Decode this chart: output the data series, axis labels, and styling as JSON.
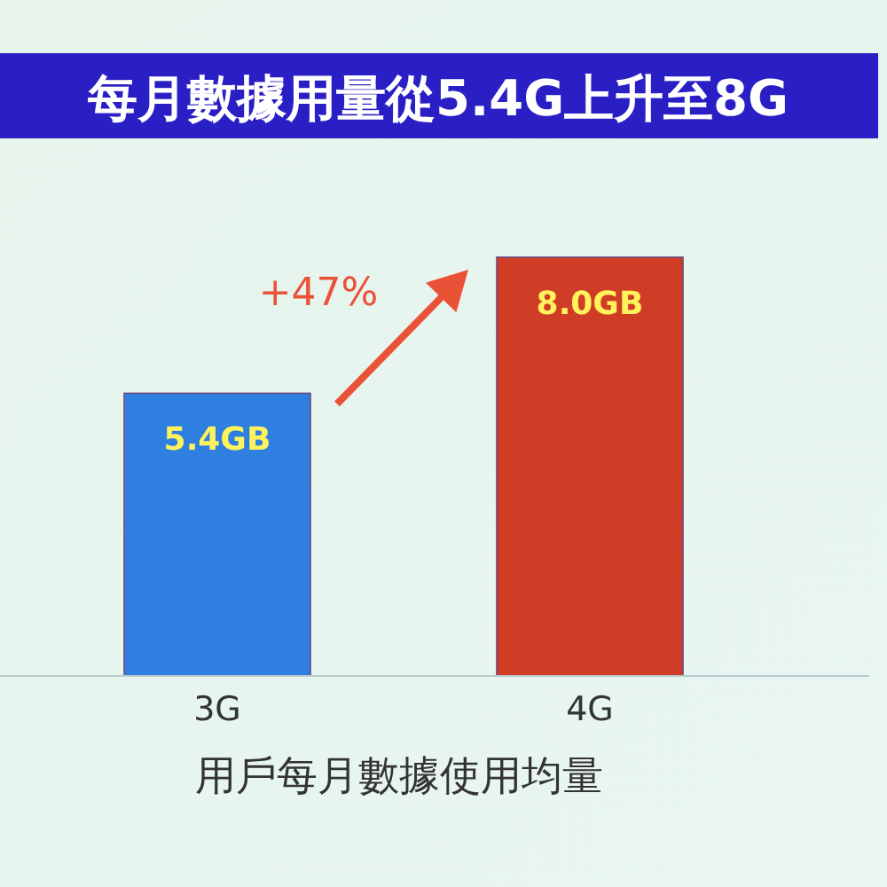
{
  "chart_data": {
    "type": "bar",
    "title": "每月數據用量從5.4G上升至8G",
    "xlabel": "用戶每月數據使用均量",
    "categories": [
      "3G",
      "4G"
    ],
    "values": [
      5.4,
      8.0
    ],
    "colors": [
      "#2f7fe0",
      "#d03d26"
    ],
    "value_labels": [
      "5.4GB",
      "8.0GB"
    ],
    "annotations": [
      "+47%"
    ]
  }
}
